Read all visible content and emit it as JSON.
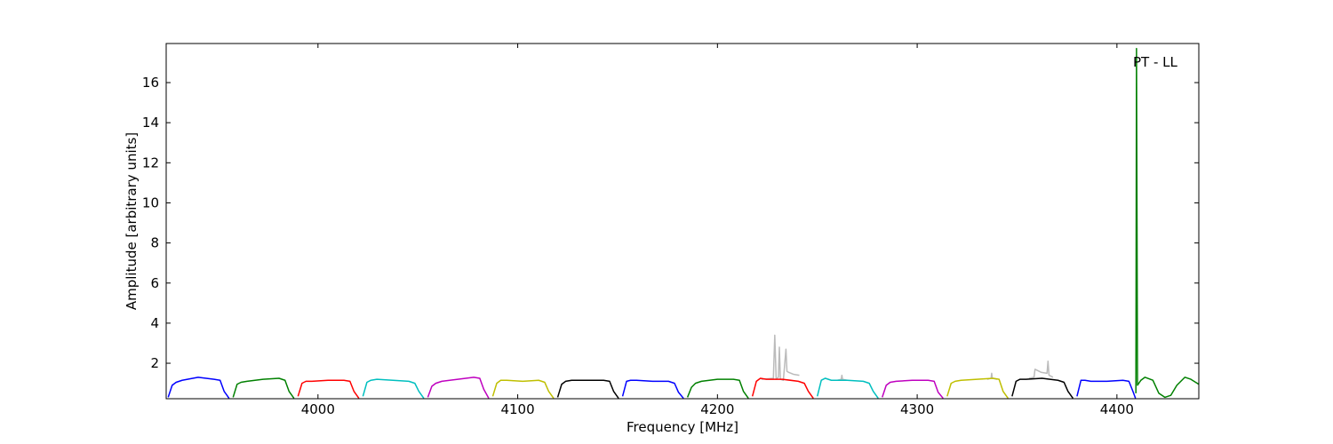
{
  "chart_data": {
    "type": "line",
    "xlabel": "Frequency [MHz]",
    "ylabel": "Amplitude [arbitrary units]",
    "annotation": "PT - LL",
    "xlim": [
      3924,
      4441
    ],
    "ylim": [
      0.23,
      17.95
    ],
    "xticks": [
      4000,
      4100,
      4200,
      4300,
      4400
    ],
    "yticks": [
      2,
      4,
      6,
      8,
      10,
      12,
      14,
      16
    ],
    "series": [
      {
        "color": "#bbbbbb",
        "x": [
          4222,
          4228,
          4228.7,
          4229.4,
          4230.5,
          4231,
          4231.5,
          4233,
          4234.3,
          4234.8,
          4235.5,
          4238,
          4241
        ],
        "values": [
          1.2,
          1.25,
          3.4,
          1.2,
          1.3,
          2.8,
          1.2,
          1.15,
          2.7,
          1.6,
          1.55,
          1.45,
          1.4
        ]
      },
      {
        "color": "#bbbbbb",
        "x": [
          4260,
          4262,
          4262.3,
          4262.6,
          4265
        ],
        "values": [
          1.15,
          1.2,
          1.4,
          1.2,
          1.15
        ]
      },
      {
        "color": "#bbbbbb",
        "x": [
          4335,
          4337,
          4337.3,
          4337.6,
          4340
        ],
        "values": [
          1.2,
          1.25,
          1.5,
          1.25,
          1.2
        ]
      },
      {
        "color": "#bbbbbb",
        "x": [
          4356,
          4358.5,
          4359,
          4362,
          4365,
          4365.5,
          4366,
          4368
        ],
        "values": [
          1.25,
          1.3,
          1.7,
          1.55,
          1.5,
          2.1,
          1.4,
          1.3
        ]
      },
      {
        "color": "#0000ff",
        "x": [
          3925,
          3927,
          3929,
          3932,
          3940,
          3948,
          3951,
          3953,
          3955.5
        ],
        "values": [
          0.3,
          0.9,
          1.05,
          1.15,
          1.3,
          1.2,
          1.15,
          0.6,
          0.25
        ]
      },
      {
        "color": "#008000",
        "x": [
          3957.5,
          3959.5,
          3961.5,
          3964.5,
          3972.5,
          3980.5,
          3983.5,
          3985.5,
          3988
        ],
        "values": [
          0.3,
          0.95,
          1.05,
          1.1,
          1.2,
          1.25,
          1.15,
          0.6,
          0.25
        ]
      },
      {
        "color": "#ff0000",
        "x": [
          3990,
          3992,
          3994,
          3997,
          4005,
          4013,
          4016,
          4018,
          4020.5
        ],
        "values": [
          0.35,
          1.0,
          1.1,
          1.1,
          1.15,
          1.15,
          1.1,
          0.6,
          0.25
        ]
      },
      {
        "color": "#00bfbf",
        "x": [
          4022.5,
          4024.5,
          4026.5,
          4029.5,
          4037.5,
          4045.5,
          4048.5,
          4050.5,
          4053
        ],
        "values": [
          0.35,
          1.05,
          1.15,
          1.2,
          1.15,
          1.1,
          1.0,
          0.6,
          0.25
        ]
      },
      {
        "color": "#bf00bf",
        "x": [
          4055,
          4057,
          4059,
          4062,
          4070,
          4078,
          4081,
          4083,
          4085.5
        ],
        "values": [
          0.3,
          0.85,
          1.0,
          1.1,
          1.2,
          1.3,
          1.25,
          0.7,
          0.25
        ]
      },
      {
        "color": "#bfbf00",
        "x": [
          4087.5,
          4089.5,
          4091.5,
          4094.5,
          4102.5,
          4110.5,
          4113.5,
          4115.5,
          4118
        ],
        "values": [
          0.35,
          1.0,
          1.15,
          1.15,
          1.1,
          1.15,
          1.05,
          0.6,
          0.25
        ]
      },
      {
        "color": "#000000",
        "x": [
          4120,
          4122,
          4124,
          4127,
          4135,
          4143,
          4146,
          4148,
          4150.5
        ],
        "values": [
          0.3,
          0.95,
          1.1,
          1.15,
          1.15,
          1.15,
          1.1,
          0.6,
          0.25
        ]
      },
      {
        "color": "#0000ff",
        "x": [
          4152.5,
          4154.5,
          4156.5,
          4159.5,
          4167.5,
          4175.5,
          4178.5,
          4180.5,
          4183
        ],
        "values": [
          0.35,
          1.1,
          1.15,
          1.15,
          1.1,
          1.1,
          1.0,
          0.55,
          0.25
        ]
      },
      {
        "color": "#008000",
        "x": [
          4185,
          4187,
          4189,
          4192,
          4200,
          4208,
          4211,
          4213,
          4215.5
        ],
        "values": [
          0.3,
          0.8,
          1.0,
          1.1,
          1.2,
          1.2,
          1.15,
          0.6,
          0.25
        ]
      },
      {
        "color": "#ff0000",
        "x": [
          4217.5,
          4219.5,
          4221.5,
          4224.5,
          4232.5,
          4240.5,
          4243.5,
          4245.5,
          4248
        ],
        "values": [
          0.35,
          1.1,
          1.25,
          1.2,
          1.2,
          1.1,
          1.0,
          0.6,
          0.25
        ]
      },
      {
        "color": "#00bfbf",
        "x": [
          4250,
          4252,
          4254,
          4257,
          4265,
          4273,
          4276,
          4278,
          4280.5
        ],
        "values": [
          0.35,
          1.15,
          1.25,
          1.15,
          1.15,
          1.1,
          1.0,
          0.6,
          0.25
        ]
      },
      {
        "color": "#bf00bf",
        "x": [
          4282.5,
          4284.5,
          4286.5,
          4289.5,
          4297.5,
          4305.5,
          4308.5,
          4310.5,
          4313
        ],
        "values": [
          0.3,
          0.9,
          1.05,
          1.1,
          1.15,
          1.15,
          1.1,
          0.55,
          0.25
        ]
      },
      {
        "color": "#bfbf00",
        "x": [
          4315,
          4317,
          4319,
          4322,
          4330,
          4338,
          4341,
          4343,
          4345.5
        ],
        "values": [
          0.35,
          1.0,
          1.1,
          1.15,
          1.2,
          1.25,
          1.2,
          0.6,
          0.25
        ]
      },
      {
        "color": "#000000",
        "x": [
          4347.5,
          4349.5,
          4351.5,
          4354.5,
          4362.5,
          4370.5,
          4373.5,
          4375.5,
          4378
        ],
        "values": [
          0.35,
          1.1,
          1.2,
          1.2,
          1.25,
          1.15,
          1.05,
          0.6,
          0.25
        ]
      },
      {
        "color": "#0000ff",
        "x": [
          4380,
          4382,
          4384,
          4387,
          4395,
          4403,
          4406,
          4408,
          4409.3
        ],
        "values": [
          0.35,
          1.15,
          1.15,
          1.1,
          1.1,
          1.15,
          1.1,
          0.6,
          0.25
        ]
      },
      {
        "color": "#008000",
        "x": [
          4409.5,
          4409.8,
          4410.3,
          4412,
          4414,
          4418,
          4421,
          4424,
          4427,
          4430,
          4434,
          4437,
          4441
        ],
        "values": [
          0.5,
          17.7,
          0.9,
          1.15,
          1.3,
          1.15,
          0.5,
          0.3,
          0.4,
          0.9,
          1.3,
          1.2,
          0.95
        ]
      }
    ]
  }
}
